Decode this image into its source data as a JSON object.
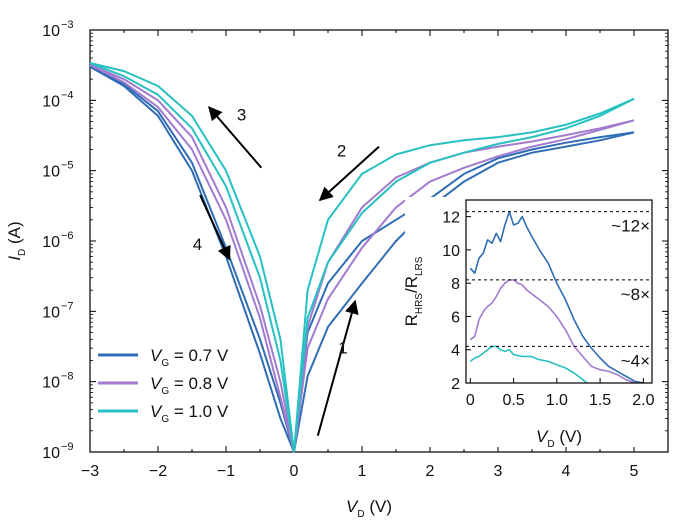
{
  "chart_data": [
    {
      "type": "line",
      "x_axis": {
        "label_main": "V",
        "label_sub": "D",
        "label_unit": "(V)",
        "range": [
          -3,
          5.5
        ],
        "ticks": [
          -3,
          -2,
          -1,
          0,
          1,
          2,
          3,
          4,
          5
        ],
        "tick_labels": [
          "−3",
          "−2",
          "−1",
          "0",
          "1",
          "2",
          "3",
          "4",
          "5"
        ]
      },
      "y_axis": {
        "label_main": "I",
        "label_sub": "D",
        "label_unit": "(A)",
        "scale": "log",
        "range": [
          1e-09,
          0.001
        ],
        "ticks": [
          1e-09,
          1e-08,
          1e-07,
          1e-06,
          1e-05,
          0.0001,
          0.001
        ],
        "tick_base": "10",
        "tick_exponents": [
          "−9",
          "−8",
          "−7",
          "−6",
          "−5",
          "−4",
          "−3"
        ]
      },
      "series": [
        {
          "name_main": "V",
          "name_sub": "G",
          "name_value": " = 0.7 V",
          "color": "#2f6db5",
          "sweeps": [
            {
              "x": [
                -3,
                -2.5,
                -2,
                -1.5,
                -1,
                -0.5,
                -0.2,
                0
              ],
              "y": [
                0.0003,
                0.00016,
                6e-05,
                1e-05,
                6e-07,
                2.5e-08,
                3e-09,
                1e-09
              ]
            },
            {
              "x": [
                0,
                0.2,
                0.5,
                1,
                1.5,
                2,
                2.5,
                3,
                3.5,
                4,
                4.5,
                5
              ],
              "y": [
                1e-09,
                1.2e-08,
                6e-08,
                2.5e-07,
                1e-06,
                3e-06,
                7e-06,
                1.3e-05,
                1.8e-05,
                2.2e-05,
                2.7e-05,
                3.5e-05
              ]
            },
            {
              "x": [
                5,
                4.5,
                4,
                3.5,
                3,
                2.5,
                2,
                1.5,
                1,
                0.5,
                0.2,
                0
              ],
              "y": [
                3.5e-05,
                3e-05,
                2.5e-05,
                2e-05,
                1.5e-05,
                9e-06,
                4e-06,
                2e-06,
                1e-06,
                2.5e-07,
                5e-08,
                1e-09
              ]
            },
            {
              "x": [
                0,
                -0.2,
                -0.5,
                -1,
                -1.5,
                -2,
                -2.5,
                -3
              ],
              "y": [
                1e-09,
                5e-09,
                4e-08,
                8e-07,
                1.3e-05,
                7e-05,
                0.00017,
                0.0003
              ]
            }
          ]
        },
        {
          "name_main": "V",
          "name_sub": "G",
          "name_value": " = 0.8 V",
          "color": "#a27ad0",
          "sweeps": [
            {
              "x": [
                -3,
                -2.5,
                -2,
                -1.5,
                -1,
                -0.5,
                -0.2,
                0
              ],
              "y": [
                0.00032,
                0.00018,
                8e-05,
                2e-05,
                2e-06,
                8e-08,
                6e-09,
                1e-09
              ]
            },
            {
              "x": [
                0,
                0.2,
                0.5,
                1,
                1.5,
                2,
                2.5,
                3,
                3.5,
                4,
                4.5,
                5
              ],
              "y": [
                1e-09,
                3e-08,
                1.5e-07,
                8e-07,
                3e-06,
                7e-06,
                1.1e-05,
                1.6e-05,
                2.2e-05,
                2.8e-05,
                3.8e-05,
                5.2e-05
              ]
            },
            {
              "x": [
                5,
                4.5,
                4,
                3.5,
                3,
                2.5,
                2,
                1.5,
                1,
                0.5,
                0.2,
                0
              ],
              "y": [
                5.2e-05,
                4e-05,
                3.2e-05,
                2.6e-05,
                2.2e-05,
                1.8e-05,
                1.3e-05,
                8e-06,
                3e-06,
                5e-07,
                6e-08,
                1e-09
              ]
            },
            {
              "x": [
                0,
                -0.2,
                -0.5,
                -1,
                -1.5,
                -2,
                -2.5,
                -3
              ],
              "y": [
                1e-09,
                1e-08,
                1.2e-07,
                3e-06,
                3e-05,
                0.0001,
                0.0002,
                0.00032
              ]
            }
          ]
        },
        {
          "name_main": "V",
          "name_sub": "G",
          "name_value": " = 1.0 V",
          "color": "#27c1c1",
          "sweeps": [
            {
              "x": [
                -3,
                -2.5,
                -2,
                -1.5,
                -1,
                -0.5,
                -0.2,
                0
              ],
              "y": [
                0.00034,
                0.00022,
                0.00012,
                4e-05,
                6e-06,
                3e-07,
                2e-08,
                1e-09
              ]
            },
            {
              "x": [
                0,
                0.2,
                0.5,
                1,
                1.5,
                2,
                2.5,
                3,
                3.5,
                4,
                4.5,
                5
              ],
              "y": [
                1e-09,
                8e-08,
                5e-07,
                2.5e-06,
                7e-06,
                1.3e-05,
                1.8e-05,
                2.4e-05,
                3e-05,
                4e-05,
                6e-05,
                0.000105
              ]
            },
            {
              "x": [
                5,
                4.5,
                4,
                3.5,
                3,
                2.5,
                2,
                1.5,
                1,
                0.5,
                0.2,
                0
              ],
              "y": [
                0.000105,
                6.5e-05,
                4.5e-05,
                3.5e-05,
                3e-05,
                2.7e-05,
                2.3e-05,
                1.7e-05,
                9e-06,
                2e-06,
                2e-07,
                1e-09
              ]
            },
            {
              "x": [
                0,
                -0.2,
                -0.5,
                -1,
                -1.5,
                -2,
                -2.5,
                -3
              ],
              "y": [
                1e-09,
                4e-08,
                6e-07,
                1e-05,
                6e-05,
                0.00016,
                0.00026,
                0.00034
              ]
            }
          ]
        }
      ],
      "annotations": [
        {
          "text": "1",
          "x": 0.72,
          "y": 2.5e-08,
          "arrow_from": [
            0.35,
            1.7e-09
          ],
          "arrow_to": [
            0.9,
            1.4e-07
          ]
        },
        {
          "text": "2",
          "x": 0.7,
          "y": 1.6e-05,
          "arrow_from": [
            1.25,
            2.2e-05
          ],
          "arrow_to": [
            0.38,
            3.8e-06
          ]
        },
        {
          "text": "3",
          "x": -0.77,
          "y": 5.2e-05,
          "arrow_from": [
            -0.48,
            1.1e-05
          ],
          "arrow_to": [
            -1.25,
            8e-05
          ]
        },
        {
          "text": "4",
          "x": -1.42,
          "y": 7.5e-07,
          "arrow_from": [
            -1.38,
            4.5e-06
          ],
          "arrow_to": [
            -0.95,
            5.5e-07
          ]
        }
      ],
      "legend_placement": "lower-left",
      "grid": false
    },
    {
      "type": "line",
      "x_axis": {
        "label_main": "V",
        "label_sub": "D",
        "label_unit": "(V)",
        "range": [
          -0.05,
          2.1
        ],
        "ticks": [
          0,
          0.5,
          1.0,
          1.5,
          2.0
        ],
        "tick_labels": [
          "0",
          "0.5",
          "1.0",
          "1.5",
          "2.0"
        ]
      },
      "y_axis": {
        "label_main": "R",
        "label_sub1": "HRS",
        "label_sep": "/R",
        "label_sub2": "LRS",
        "range": [
          2,
          13
        ],
        "ticks": [
          2,
          4,
          6,
          8,
          10,
          12
        ],
        "tick_labels": [
          "2",
          "4",
          "6",
          "8",
          "10",
          "12"
        ]
      },
      "series": [
        {
          "color": "#2f6db5",
          "x": [
            0,
            0.05,
            0.1,
            0.15,
            0.2,
            0.25,
            0.3,
            0.35,
            0.4,
            0.45,
            0.5,
            0.55,
            0.6,
            0.65,
            0.7,
            0.8,
            0.9,
            1.0,
            1.1,
            1.2,
            1.3,
            1.4,
            1.5,
            1.6,
            1.7,
            1.8,
            1.9,
            2.0
          ],
          "y": [
            8.9,
            8.6,
            9.5,
            9.8,
            10.6,
            10.4,
            11.0,
            10.5,
            11.5,
            12.3,
            11.5,
            11.6,
            12.0,
            11.4,
            10.9,
            10.0,
            9.2,
            8.0,
            7.0,
            5.8,
            4.8,
            4.1,
            3.5,
            3.0,
            2.7,
            2.4,
            2.1,
            2.0
          ]
        },
        {
          "color": "#a27ad0",
          "x": [
            0,
            0.05,
            0.1,
            0.15,
            0.2,
            0.25,
            0.3,
            0.35,
            0.4,
            0.45,
            0.5,
            0.55,
            0.6,
            0.65,
            0.7,
            0.8,
            0.9,
            1.0,
            1.1,
            1.2,
            1.3,
            1.4,
            1.5,
            1.6,
            1.7,
            1.8,
            1.9
          ],
          "y": [
            4.6,
            4.8,
            5.8,
            6.3,
            6.6,
            6.8,
            7.2,
            7.7,
            8.0,
            8.2,
            8.2,
            8.0,
            7.9,
            7.6,
            7.4,
            7.0,
            6.6,
            6.0,
            5.2,
            4.2,
            3.6,
            3.0,
            2.8,
            2.7,
            2.5,
            2.2,
            2.0
          ]
        },
        {
          "color": "#27c1c1",
          "x": [
            0,
            0.05,
            0.1,
            0.15,
            0.2,
            0.25,
            0.3,
            0.35,
            0.4,
            0.45,
            0.5,
            0.6,
            0.7,
            0.8,
            0.9,
            1.0,
            1.1,
            1.2,
            1.25,
            1.3,
            1.35
          ],
          "y": [
            3.3,
            3.5,
            3.6,
            3.8,
            4.0,
            4.2,
            4.2,
            4.0,
            3.9,
            4.0,
            3.7,
            3.6,
            3.6,
            3.4,
            3.3,
            3.1,
            2.9,
            2.6,
            2.4,
            2.2,
            2.0
          ]
        }
      ],
      "reference_lines": [
        {
          "y": 12.3,
          "label": "~12×"
        },
        {
          "y": 8.2,
          "label": "~8×"
        },
        {
          "y": 4.2,
          "label": "~4×"
        }
      ]
    }
  ]
}
